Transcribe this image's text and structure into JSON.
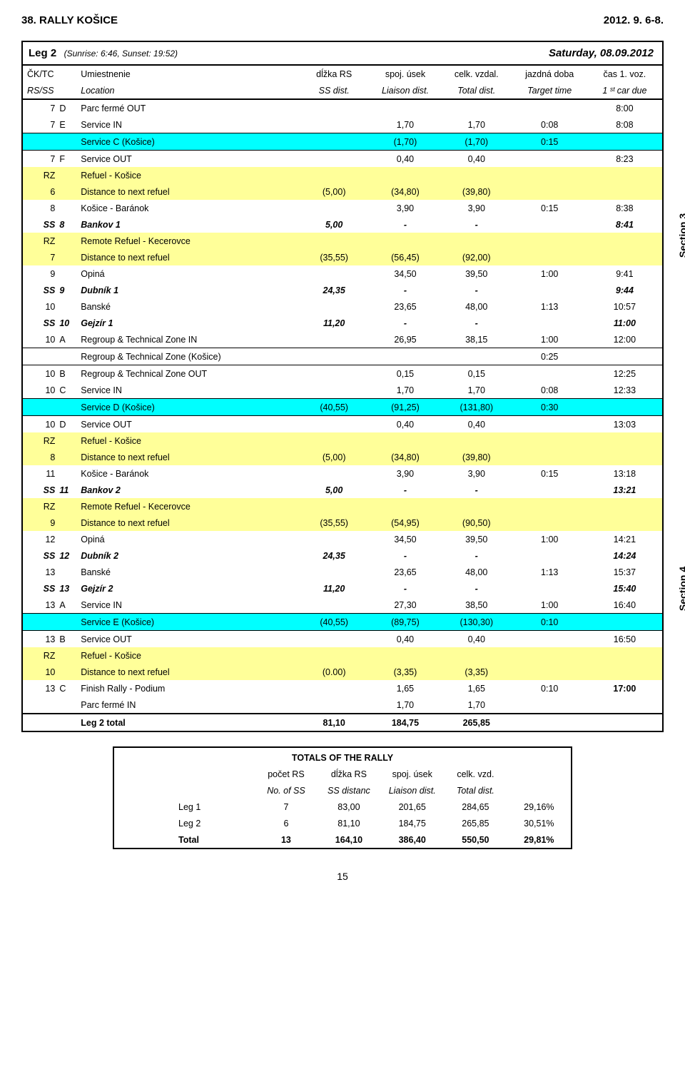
{
  "header": {
    "left": "38. RALLY KOŠICE",
    "right": "2012. 9. 6-8."
  },
  "leg": {
    "title": "Leg 2",
    "sub": "(Sunrise: 6:46, Sunset: 19:52)",
    "date": "Saturday, 08.09.2012"
  },
  "colhdr1": {
    "a": "ČK/TC",
    "b": "Umiestnenie",
    "c": "dĺžka RS",
    "d": "spoj. úsek",
    "e": "celk. vzdal.",
    "f": "jazdná doba",
    "g": "čas 1. voz."
  },
  "colhdr2": {
    "a": "RS/SS",
    "b": "Location",
    "c": "SS dist.",
    "d": "Liaison dist.",
    "e": "Total dist.",
    "f": "Target time",
    "g": "1 ˢᵗ car due"
  },
  "side": {
    "s1": "Section 3",
    "s2": "Section 4"
  },
  "rows": [
    {
      "cls": "",
      "c0": "7",
      "c0b": "D",
      "c1": "Parc fermé OUT",
      "c2": "",
      "c3": "",
      "c4": "",
      "c5": "",
      "c6": "8:00"
    },
    {
      "cls": "",
      "c0": "7",
      "c0b": "E",
      "c1": "Service IN",
      "c2": "",
      "c3": "1,70",
      "c4": "1,70",
      "c5": "0:08",
      "c6": "8:08"
    },
    {
      "cls": "cyan thinbox",
      "c0": "",
      "c0b": "",
      "c1": "Service C (Košice)",
      "c2": "",
      "c3": "(1,70)",
      "c4": "(1,70)",
      "c5": "0:15",
      "c6": ""
    },
    {
      "cls": "",
      "c0": "7",
      "c0b": "F",
      "c1": "Service OUT",
      "c2": "",
      "c3": "0,40",
      "c4": "0,40",
      "c5": "",
      "c6": "8:23"
    },
    {
      "cls": "yellow",
      "c0": "RZ",
      "c0b": "",
      "c1": "Refuel - Košice",
      "c2": "",
      "c3": "",
      "c4": "",
      "c5": "",
      "c6": ""
    },
    {
      "cls": "yellow",
      "c0": "6",
      "c0b": "",
      "c1": "Distance to next refuel",
      "c2": "(5,00)",
      "c3": "(34,80)",
      "c4": "(39,80)",
      "c5": "",
      "c6": ""
    },
    {
      "cls": "",
      "c0": "8",
      "c0b": "",
      "c1": "Košice - Baránok",
      "c2": "",
      "c3": "3,90",
      "c4": "3,90",
      "c5": "0:15",
      "c6": "8:38"
    },
    {
      "cls": "bold ital",
      "c0": "SS",
      "c0b": "8",
      "c1": "Bankov 1",
      "c2": "5,00",
      "c3": "-",
      "c4": "-",
      "c5": "",
      "c6": "8:41"
    },
    {
      "cls": "yellow",
      "c0": "RZ",
      "c0b": "",
      "c1": "Remote Refuel - Kecerovce",
      "c2": "",
      "c3": "",
      "c4": "",
      "c5": "",
      "c6": ""
    },
    {
      "cls": "yellow",
      "c0": "7",
      "c0b": "",
      "c1": "Distance to next refuel",
      "c2": "(35,55)",
      "c3": "(56,45)",
      "c4": "(92,00)",
      "c5": "",
      "c6": ""
    },
    {
      "cls": "",
      "c0": "9",
      "c0b": "",
      "c1": "Opiná",
      "c2": "",
      "c3": "34,50",
      "c4": "39,50",
      "c5": "1:00",
      "c6": "9:41"
    },
    {
      "cls": "bold ital",
      "c0": "SS",
      "c0b": "9",
      "c1": "Dubník 1",
      "c2": "24,35",
      "c3": "-",
      "c4": "-",
      "c5": "",
      "c6": "9:44"
    },
    {
      "cls": "",
      "c0": "10",
      "c0b": "",
      "c1": "Banské",
      "c2": "",
      "c3": "23,65",
      "c4": "48,00",
      "c5": "1:13",
      "c6": "10:57"
    },
    {
      "cls": "bold ital",
      "c0": "SS",
      "c0b": "10",
      "c1": "Gejzír 1",
      "c2": "11,20",
      "c3": "-",
      "c4": "-",
      "c5": "",
      "c6": "11:00"
    },
    {
      "cls": "",
      "c0": "10",
      "c0b": "A",
      "c1": "Regroup & Technical Zone IN",
      "c2": "",
      "c3": "26,95",
      "c4": "38,15",
      "c5": "1:00",
      "c6": "12:00"
    },
    {
      "cls": "thinbox",
      "c0": "",
      "c0b": "",
      "c1": "Regroup & Technical Zone (Košice)",
      "c2": "",
      "c3": "",
      "c4": "",
      "c5": "0:25",
      "c6": ""
    },
    {
      "cls": "",
      "c0": "10",
      "c0b": "B",
      "c1": "Regroup & Technical Zone OUT",
      "c2": "",
      "c3": "0,15",
      "c4": "0,15",
      "c5": "",
      "c6": "12:25"
    },
    {
      "cls": "",
      "c0": "10",
      "c0b": "C",
      "c1": "Service IN",
      "c2": "",
      "c3": "1,70",
      "c4": "1,70",
      "c5": "0:08",
      "c6": "12:33"
    },
    {
      "cls": "cyan thinbox",
      "c0": "",
      "c0b": "",
      "c1": "Service D (Košice)",
      "c2": "(40,55)",
      "c3": "(91,25)",
      "c4": "(131,80)",
      "c5": "0:30",
      "c6": ""
    },
    {
      "cls": "",
      "c0": "10",
      "c0b": "D",
      "c1": "Service OUT",
      "c2": "",
      "c3": "0,40",
      "c4": "0,40",
      "c5": "",
      "c6": "13:03"
    },
    {
      "cls": "yellow",
      "c0": "RZ",
      "c0b": "",
      "c1": "Refuel - Košice",
      "c2": "",
      "c3": "",
      "c4": "",
      "c5": "",
      "c6": ""
    },
    {
      "cls": "yellow",
      "c0": "8",
      "c0b": "",
      "c1": "Distance to next refuel",
      "c2": "(5,00)",
      "c3": "(34,80)",
      "c4": "(39,80)",
      "c5": "",
      "c6": ""
    },
    {
      "cls": "",
      "c0": "11",
      "c0b": "",
      "c1": "Košice - Baránok",
      "c2": "",
      "c3": "3,90",
      "c4": "3,90",
      "c5": "0:15",
      "c6": "13:18"
    },
    {
      "cls": "bold ital",
      "c0": "SS",
      "c0b": "11",
      "c1": "Bankov 2",
      "c2": "5,00",
      "c3": "-",
      "c4": "-",
      "c5": "",
      "c6": "13:21"
    },
    {
      "cls": "yellow",
      "c0": "RZ",
      "c0b": "",
      "c1": "Remote Refuel - Kecerovce",
      "c2": "",
      "c3": "",
      "c4": "",
      "c5": "",
      "c6": ""
    },
    {
      "cls": "yellow",
      "c0": "9",
      "c0b": "",
      "c1": "Distance to next refuel",
      "c2": "(35,55)",
      "c3": "(54,95)",
      "c4": "(90,50)",
      "c5": "",
      "c6": ""
    },
    {
      "cls": "",
      "c0": "12",
      "c0b": "",
      "c1": "Opiná",
      "c2": "",
      "c3": "34,50",
      "c4": "39,50",
      "c5": "1:00",
      "c6": "14:21"
    },
    {
      "cls": "bold ital",
      "c0": "SS",
      "c0b": "12",
      "c1": "Dubník 2",
      "c2": "24,35",
      "c3": "-",
      "c4": "-",
      "c5": "",
      "c6": "14:24"
    },
    {
      "cls": "",
      "c0": "13",
      "c0b": "",
      "c1": "Banské",
      "c2": "",
      "c3": "23,65",
      "c4": "48,00",
      "c5": "1:13",
      "c6": "15:37"
    },
    {
      "cls": "bold ital",
      "c0": "SS",
      "c0b": "13",
      "c1": "Gejzír 2",
      "c2": "11,20",
      "c3": "-",
      "c4": "-",
      "c5": "",
      "c6": "15:40"
    },
    {
      "cls": "",
      "c0": "13",
      "c0b": "A",
      "c1": "Service IN",
      "c2": "",
      "c3": "27,30",
      "c4": "38,50",
      "c5": "1:00",
      "c6": "16:40"
    },
    {
      "cls": "cyan thinbox",
      "c0": "",
      "c0b": "",
      "c1": "Service E (Košice)",
      "c2": "(40,55)",
      "c3": "(89,75)",
      "c4": "(130,30)",
      "c5": "0:10",
      "c6": ""
    },
    {
      "cls": "",
      "c0": "13",
      "c0b": "B",
      "c1": "Service OUT",
      "c2": "",
      "c3": "0,40",
      "c4": "0,40",
      "c5": "",
      "c6": "16:50"
    },
    {
      "cls": "yellow",
      "c0": "RZ",
      "c0b": "",
      "c1": "Refuel - Košice",
      "c2": "",
      "c3": "",
      "c4": "",
      "c5": "",
      "c6": ""
    },
    {
      "cls": "yellow",
      "c0": "10",
      "c0b": "",
      "c1": "Distance to next refuel",
      "c2": "(0.00)",
      "c3": "(3,35)",
      "c4": "(3,35)",
      "c5": "",
      "c6": ""
    },
    {
      "cls": "",
      "c0": "13",
      "c0b": "C",
      "c1": "Finish Rally - Podium",
      "c2": "",
      "c3": "1,65",
      "c4": "1,65",
      "c5": "0:10",
      "c6": "17:00",
      "c6b": true
    },
    {
      "cls": "",
      "c0": "",
      "c0b": "",
      "c1": "Parc fermé IN",
      "c2": "",
      "c3": "1,70",
      "c4": "1,70",
      "c5": "",
      "c6": ""
    },
    {
      "cls": "bold",
      "c0": "",
      "c0b": "",
      "c1": "Leg 2 total",
      "c2": "81,10",
      "c3": "184,75",
      "c4": "265,85",
      "c5": "",
      "c6": ""
    }
  ],
  "totals": {
    "title": "TOTALS  OF THE  RALLY",
    "h1": {
      "a": "počet RS",
      "b": "dĺžka RS",
      "c": "spoj. úsek",
      "d": "celk. vzd."
    },
    "h2": {
      "a": "No. of SS",
      "b": "SS distanc",
      "c": "Liaison dist.",
      "d": "Total dist."
    },
    "rows": [
      {
        "l": "Leg 1",
        "a": "7",
        "b": "83,00",
        "c": "201,65",
        "d": "284,65",
        "e": "29,16%"
      },
      {
        "l": "Leg 2",
        "a": "6",
        "b": "81,10",
        "c": "184,75",
        "d": "265,85",
        "e": "30,51%"
      },
      {
        "l": "Total",
        "a": "13",
        "b": "164,10",
        "c": "386,40",
        "d": "550,50",
        "e": "29,81%",
        "bold": true
      }
    ]
  },
  "pagenum": "15"
}
